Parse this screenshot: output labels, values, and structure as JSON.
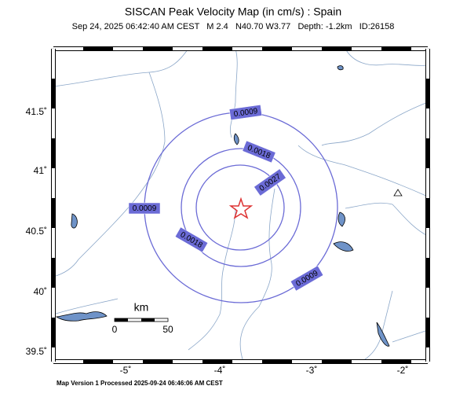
{
  "header": {
    "title": "SISCAN Peak Velocity Map (in cm/s) : Spain",
    "subtitle": "Sep 24, 2025 06:42:40 AM CEST   M 2.4   N40.70 W3.77   Depth: -1.2km   ID:26158"
  },
  "map": {
    "lat_labels": [
      "41.5˚",
      "41˚",
      "40.5˚",
      "40˚",
      "39.5˚"
    ],
    "lon_labels": [
      "-5˚",
      "-4˚",
      "-3˚",
      "-2˚"
    ],
    "contour_labels": [
      "0.0009",
      "0.0018",
      "0.0027",
      "0.0009",
      "0.0018",
      "0.0009"
    ],
    "scale": {
      "unit": "km",
      "start": "0",
      "end": "50"
    }
  },
  "footer": "Map Version 1 Processed 2025-09-24 06:46:06 AM CEST"
}
